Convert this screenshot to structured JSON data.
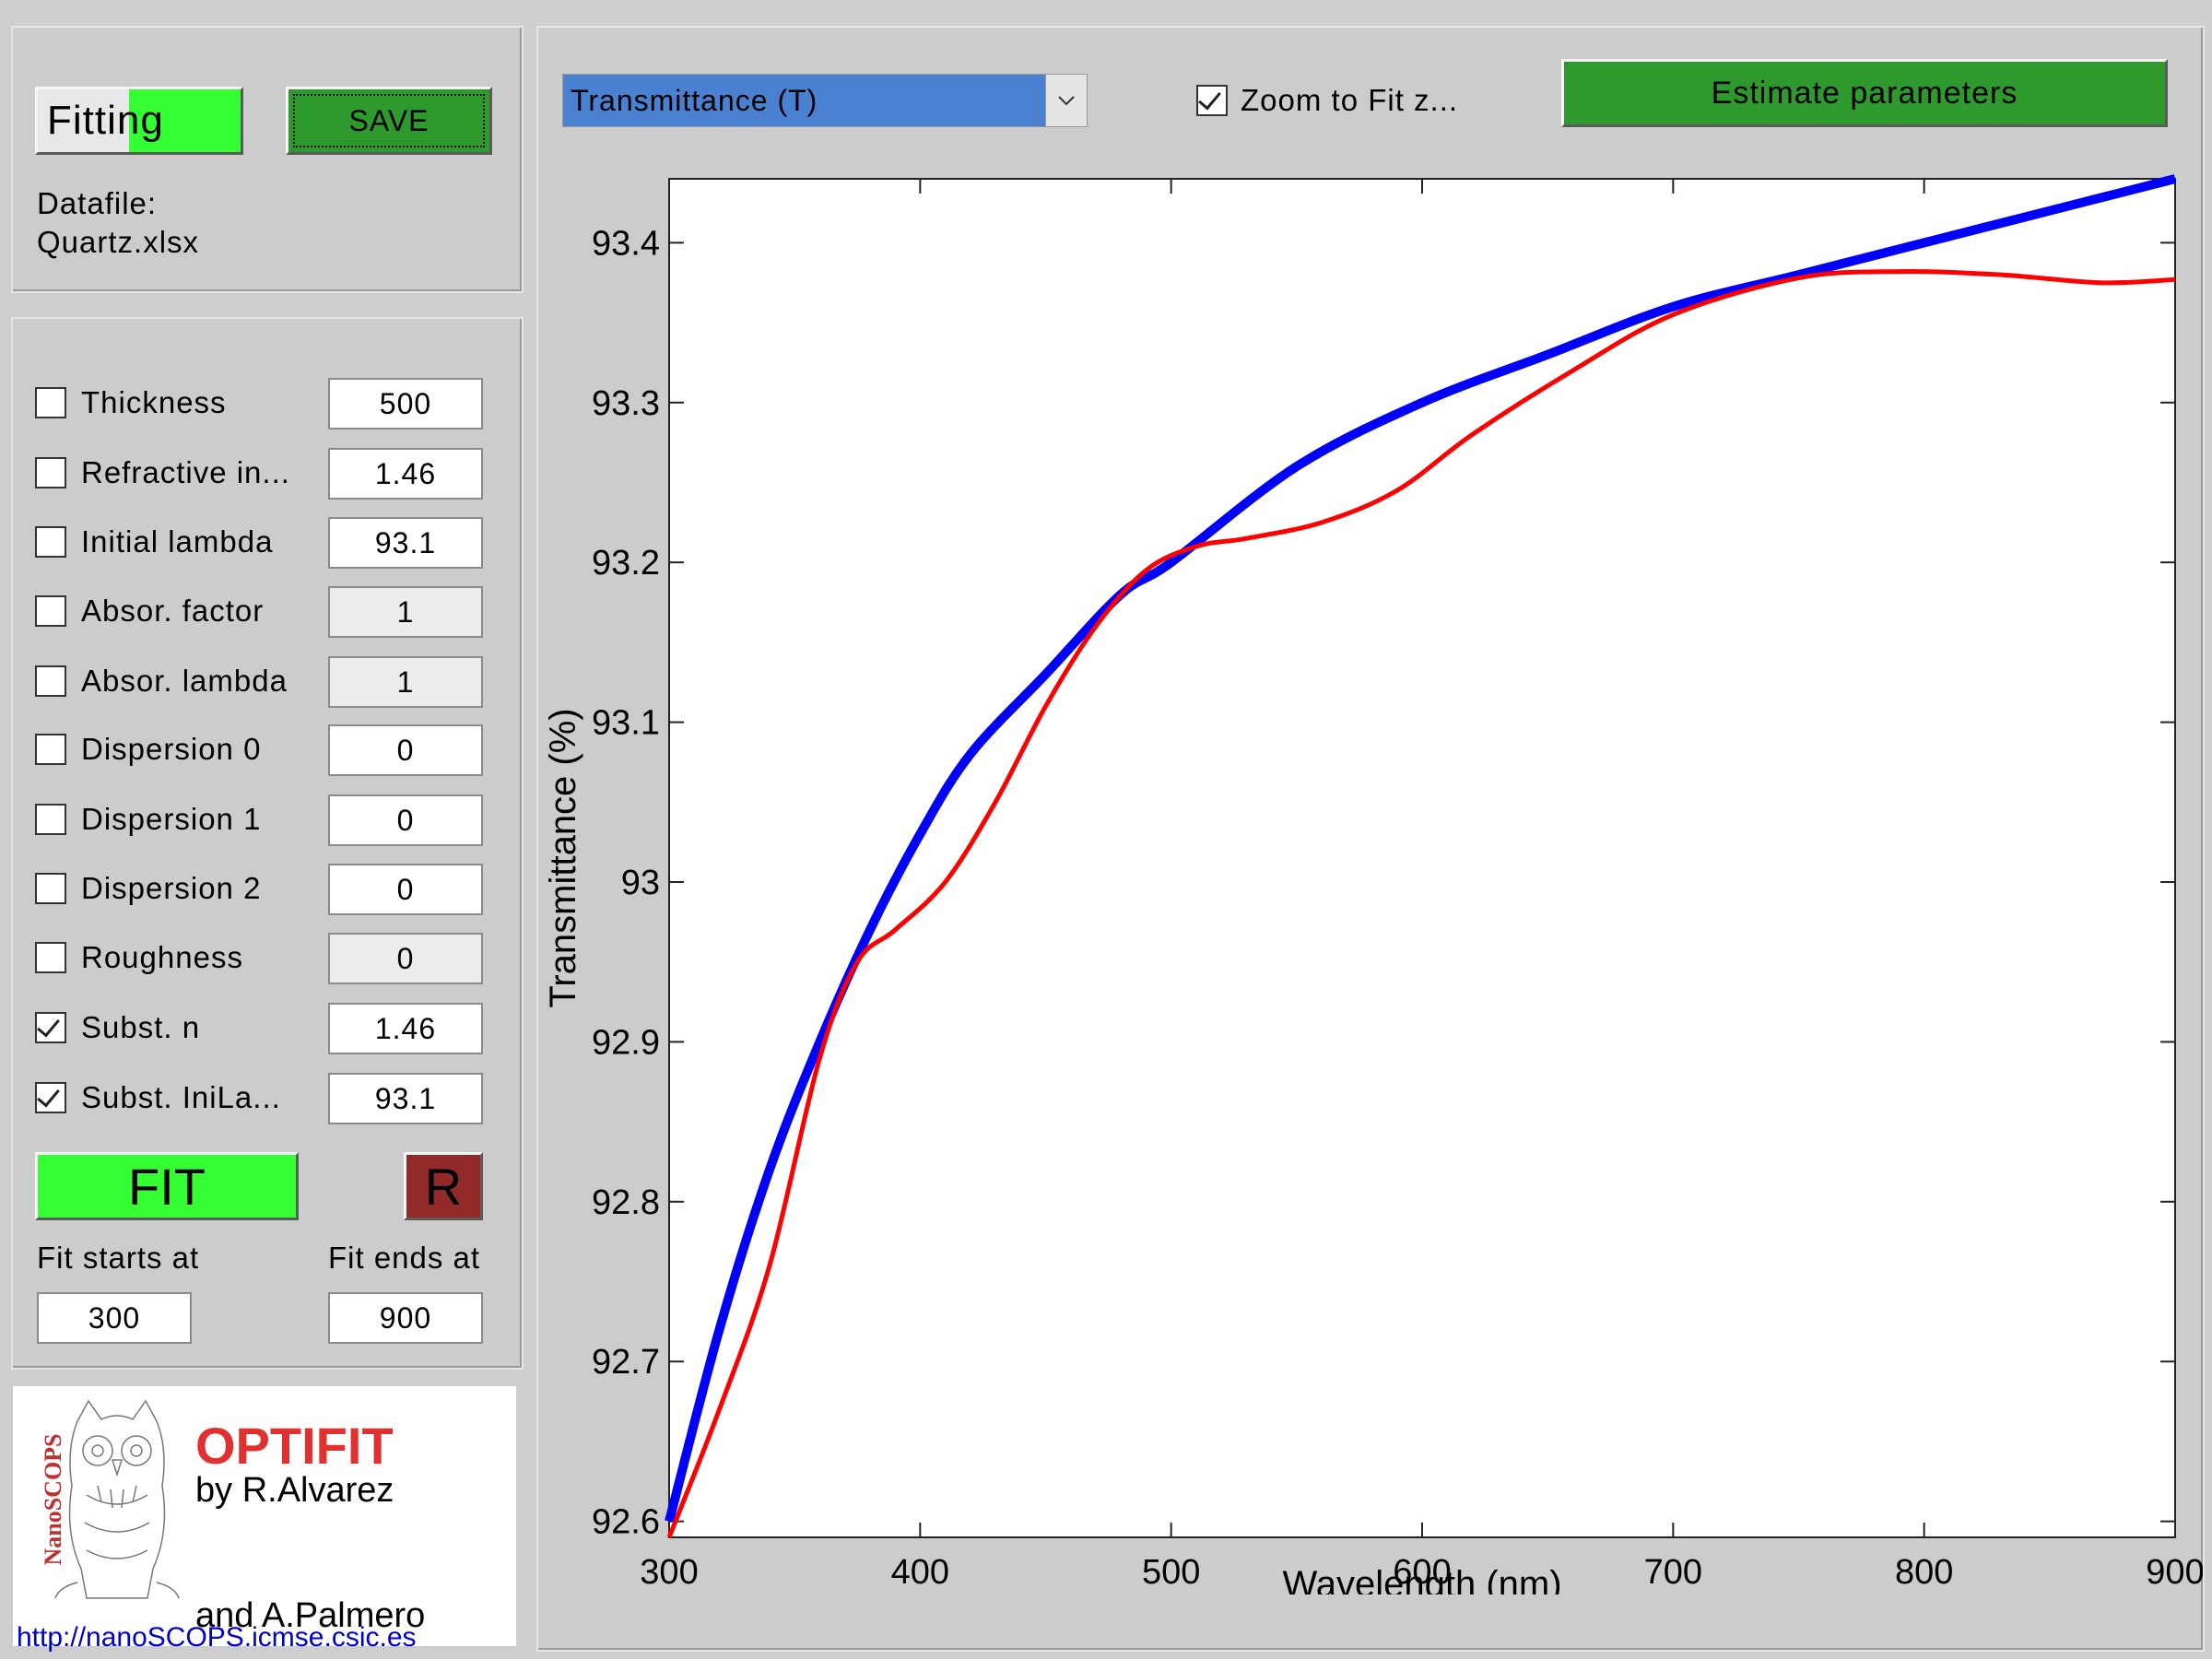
{
  "header": {
    "mode_label": "Fitting",
    "save_label": "SAVE",
    "datafile_label": "Datafile:",
    "datafile_name": "Quartz.xlsx"
  },
  "params": [
    {
      "label": "Thickness",
      "value": "500",
      "checked": false,
      "enabled": true
    },
    {
      "label": "Refractive in...",
      "value": "1.46",
      "checked": false,
      "enabled": true
    },
    {
      "label": "Initial lambda",
      "value": "93.1",
      "checked": false,
      "enabled": true
    },
    {
      "label": "Absor. factor",
      "value": "1",
      "checked": false,
      "enabled": false
    },
    {
      "label": "Absor. lambda",
      "value": "1",
      "checked": false,
      "enabled": false
    },
    {
      "label": "Dispersion 0",
      "value": "0",
      "checked": false,
      "enabled": true
    },
    {
      "label": "Dispersion 1",
      "value": "0",
      "checked": false,
      "enabled": true
    },
    {
      "label": "Dispersion 2",
      "value": "0",
      "checked": false,
      "enabled": true
    },
    {
      "label": "Roughness",
      "value": "0",
      "checked": false,
      "enabled": false
    },
    {
      "label": "Subst. n",
      "value": "1.46",
      "checked": true,
      "enabled": true
    },
    {
      "label": "Subst. IniLa...",
      "value": "93.1",
      "checked": true,
      "enabled": true
    }
  ],
  "fit": {
    "fit_label": "FIT",
    "reset_label": "R",
    "start_label": "Fit starts at",
    "end_label": "Fit ends at",
    "start_value": "300",
    "end_value": "900"
  },
  "logo": {
    "vertical_text": "NanoSCOPS",
    "app_name": "OPTIFIT",
    "author1": "by R.Alvarez",
    "author2": "and A.Palmero",
    "url": "http://nanoSCOPS.icmse.csic.es",
    "icon": "owl-icon"
  },
  "toolbar": {
    "dropdown_value": "Transmittance (T)",
    "zoom_label": "Zoom to Fit z...",
    "zoom_checked": true,
    "estimate_label": "Estimate parameters"
  },
  "colors": {
    "green": "#33ff33",
    "dark_green": "#2e9a2e",
    "dropdown_blue": "#4a80d0",
    "reset_red": "#922a2a",
    "fit_line": "#0000ff",
    "data_line": "#ff0000",
    "logo_red": "#e03030"
  },
  "chart_data": {
    "type": "line",
    "xlabel": "Wavelength (nm)",
    "ylabel": "Transmittance (%)",
    "xlim": [
      300,
      900
    ],
    "ylim": [
      92.59,
      93.44
    ],
    "xticks": [
      300,
      400,
      500,
      600,
      700,
      800,
      900
    ],
    "yticks": [
      92.6,
      92.7,
      92.8,
      92.9,
      93,
      93.1,
      93.2,
      93.3,
      93.4
    ],
    "ytick_labels": [
      "92.6",
      "92.7",
      "92.8",
      "92.9",
      "93",
      "93.1",
      "93.2",
      "93.3",
      "93.4"
    ],
    "grid": false,
    "series": [
      {
        "x": [
          300,
          320,
          340,
          360,
          380,
          400,
          420,
          450,
          480,
          500,
          550,
          600,
          650,
          700,
          750,
          800,
          850,
          900
        ],
        "y": [
          92.6,
          92.72,
          92.82,
          92.9,
          92.97,
          93.03,
          93.08,
          93.13,
          93.18,
          93.2,
          93.26,
          93.3,
          93.33,
          93.36,
          93.38,
          93.4,
          93.42,
          93.44
        ]
      },
      {
        "x": [
          300,
          320,
          340,
          360,
          375,
          390,
          410,
          430,
          450,
          470,
          490,
          510,
          530,
          560,
          590,
          620,
          660,
          700,
          750,
          790,
          830,
          870,
          900
        ],
        "y": [
          92.59,
          92.67,
          92.76,
          92.89,
          92.95,
          92.97,
          93.0,
          93.05,
          93.11,
          93.16,
          93.195,
          93.21,
          93.215,
          93.225,
          93.245,
          93.28,
          93.32,
          93.355,
          93.378,
          93.382,
          93.38,
          93.375,
          93.377
        ]
      }
    ]
  }
}
